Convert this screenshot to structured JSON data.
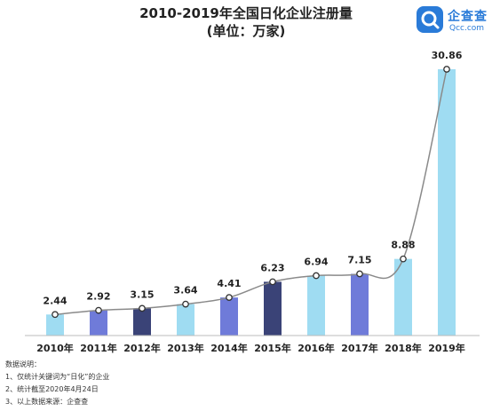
{
  "header": {
    "title": "2010-2019年全国日化企业注册量",
    "subtitle": "(单位：万家)"
  },
  "logo": {
    "name": "企查查",
    "url": "Qcc.com",
    "brand_color": "#2a7bd8"
  },
  "chart_data": {
    "type": "bar",
    "title": "2010-2019年全国日化企业注册量",
    "subtitle": "(单位：万家)",
    "categories": [
      "2010年",
      "2011年",
      "2012年",
      "2013年",
      "2014年",
      "2015年",
      "2016年",
      "2017年",
      "2018年",
      "2019年"
    ],
    "values": [
      2.44,
      2.92,
      3.15,
      3.64,
      4.41,
      6.23,
      6.94,
      7.15,
      8.88,
      30.86
    ],
    "value_labels": [
      "2.44",
      "2.92",
      "3.15",
      "3.64",
      "4.41",
      "6.23",
      "6.94",
      "7.15",
      "8.88",
      "30.86"
    ],
    "bar_colors": [
      "#9fdcf2",
      "#6f7bd9",
      "#3a4377",
      "#9fdcf2",
      "#6f7bd9",
      "#3a4377",
      "#9fdcf2",
      "#6f7bd9",
      "#9fdcf2",
      "#9fdcf2"
    ],
    "trend_line": true,
    "trend_line_color": "#8a8a8a",
    "ylim": [
      0,
      32
    ],
    "grid": false,
    "xlabel": "",
    "ylabel": ""
  },
  "notes": {
    "heading": "数据说明：",
    "items": [
      "1、仅统计关键词为“日化”的企业",
      "2、统计截至2020年4月24日",
      "3、以上数据来源：企查查"
    ]
  }
}
